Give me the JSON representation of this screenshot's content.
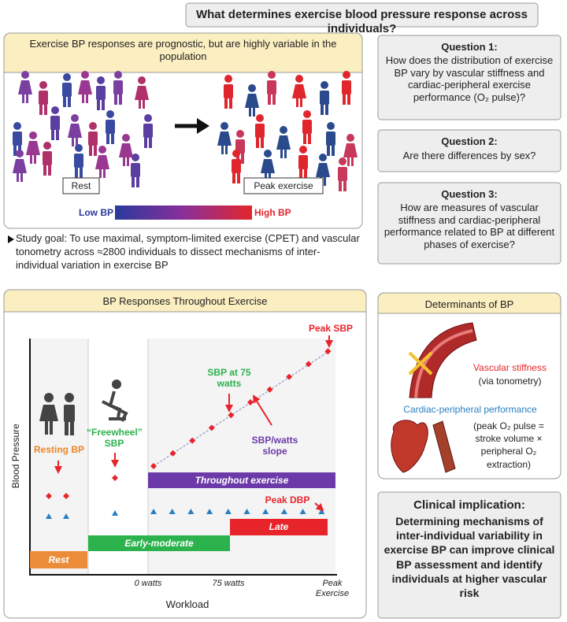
{
  "title": "What determines exercise blood pressure response across individuals?",
  "top_panel": {
    "header": "Exercise BP responses are prognostic, but are highly variable in the population",
    "rest_label": "Rest",
    "peak_label": "Peak exercise",
    "low_label": "Low BP",
    "high_label": "High BP"
  },
  "study_goal": "Study goal: To use maximal, symptom-limited exercise (CPET) and vascular tonometry across ≈2800 individuals to dissect mechanisms of inter-individual variation in exercise BP",
  "questions": [
    {
      "title": "Question 1:",
      "text": "How does the distribution of exercise BP vary by vascular stiffness and cardiac-peripheral exercise performance (O₂ pulse)?"
    },
    {
      "title": "Question 2:",
      "text": "Are there differences by sex?"
    },
    {
      "title": "Question 3:",
      "text": "How are measures of vascular stiffness and cardiac-peripheral performance related to BP at different phases of exercise?"
    }
  ],
  "bp_panel": {
    "header": "BP Responses Throughout Exercise",
    "y_label": "Blood Pressure",
    "x_label": "Workload",
    "x_ticks": [
      "0 watts",
      "75 watts",
      "Peak Exercise"
    ],
    "annotations": {
      "resting_bp": "Resting BP",
      "freewheel": "“Freewheel” SBP",
      "sbp75": "SBP at 75 watts",
      "peak_sbp": "Peak SBP",
      "slope": "SBP/watts slope",
      "peak_dbp": "Peak DBP"
    },
    "phases": {
      "rest": "Rest",
      "early": "Early-moderate",
      "throughout": "Throughout exercise",
      "late": "Late"
    }
  },
  "determinants": {
    "header": "Determinants of BP",
    "stiffness": "Vascular stiffness",
    "stiffness_note": "(via tonometry)",
    "performance": "Cardiac-peripheral performance",
    "performance_note": "(peak O₂ pulse = stroke volume × peripheral O₂ extraction)"
  },
  "clinical": {
    "title": "Clinical implication:",
    "text": "Determining mechanisms of inter-individual variability in exercise BP can improve clinical BP assessment and identify individuals at higher vascular risk"
  }
}
